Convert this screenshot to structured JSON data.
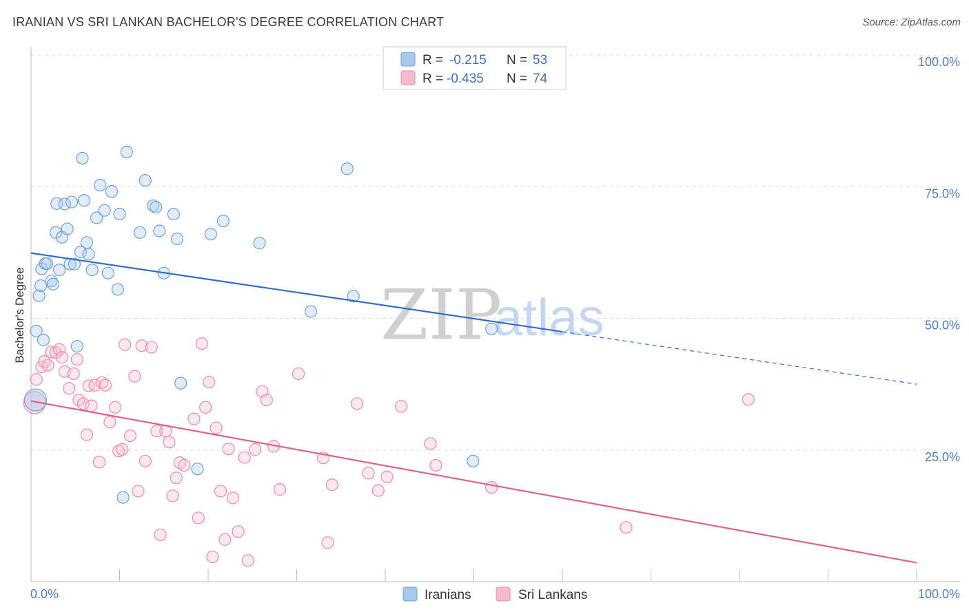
{
  "header": {
    "title": "IRANIAN VS SRI LANKAN BACHELOR'S DEGREE CORRELATION CHART",
    "source": "Source: ZipAtlas.com"
  },
  "watermark": {
    "zip": "ZIP",
    "atlas": "atlas"
  },
  "colors": {
    "blue_fill": "#a9c8ee",
    "blue_stroke": "#6f9fd8",
    "blue_line": "#2f6fcc",
    "pink_fill": "#f6bccd",
    "pink_stroke": "#ec8aa8",
    "pink_line": "#e0608e",
    "grid": "#dddddd",
    "axis_label": "#4a7cc7"
  },
  "legend": {
    "rows": [
      {
        "r_label": "R =",
        "r_value": "-0.215",
        "n_label": "N =",
        "n_value": "53"
      },
      {
        "r_label": "R =",
        "r_value": "-0.435",
        "n_label": "N =",
        "n_value": "74"
      }
    ]
  },
  "chart_data": {
    "type": "scatter",
    "title": "IRANIAN VS SRI LANKAN BACHELOR'S DEGREE CORRELATION CHART",
    "xlabel": "",
    "ylabel": "Bachelor's Degree",
    "xlim": [
      0,
      100
    ],
    "ylim": [
      0,
      100
    ],
    "x_tick_labels": [
      "0.0%",
      "100.0%"
    ],
    "y_ticks": [
      {
        "value": 100,
        "label": "100.0%"
      },
      {
        "value": 75,
        "label": "75.0%"
      },
      {
        "value": 50,
        "label": "50.0%"
      },
      {
        "value": 25,
        "label": "25.0%"
      }
    ],
    "legend_position": "bottom",
    "series": [
      {
        "name": "Iranians",
        "r": -0.215,
        "n": 53,
        "trend": {
          "x_start": 0,
          "y_start": 62.4,
          "x_solid_end": 60,
          "x_end": 100,
          "y_end": 37.5
        },
        "points": [
          [
            0.5,
            34.5
          ],
          [
            0.6,
            47.6
          ],
          [
            0.9,
            54.3
          ],
          [
            1.1,
            56.2
          ],
          [
            1.2,
            59.4
          ],
          [
            1.4,
            45.9
          ],
          [
            1.6,
            60.4
          ],
          [
            1.8,
            60.4
          ],
          [
            2.3,
            57.1
          ],
          [
            2.5,
            56.5
          ],
          [
            2.8,
            66.3
          ],
          [
            2.9,
            71.8
          ],
          [
            3.2,
            59.2
          ],
          [
            3.5,
            65.4
          ],
          [
            3.8,
            71.7
          ],
          [
            4.1,
            67.0
          ],
          [
            4.4,
            60.3
          ],
          [
            4.6,
            72.1
          ],
          [
            4.9,
            60.3
          ],
          [
            5.2,
            44.7
          ],
          [
            5.6,
            62.6
          ],
          [
            5.8,
            80.4
          ],
          [
            6.0,
            72.4
          ],
          [
            6.3,
            64.4
          ],
          [
            6.5,
            62.2
          ],
          [
            6.9,
            59.2
          ],
          [
            7.4,
            69.1
          ],
          [
            7.8,
            75.3
          ],
          [
            8.3,
            70.5
          ],
          [
            8.7,
            58.6
          ],
          [
            9.1,
            74.1
          ],
          [
            9.8,
            55.5
          ],
          [
            10.0,
            69.8
          ],
          [
            10.4,
            16.0
          ],
          [
            10.8,
            81.6
          ],
          [
            12.3,
            66.3
          ],
          [
            12.9,
            76.2
          ],
          [
            13.8,
            71.4
          ],
          [
            14.1,
            71.1
          ],
          [
            14.5,
            66.6
          ],
          [
            15.0,
            58.6
          ],
          [
            16.1,
            69.8
          ],
          [
            16.5,
            65.1
          ],
          [
            16.9,
            37.7
          ],
          [
            18.8,
            21.4
          ],
          [
            20.3,
            66.0
          ],
          [
            21.7,
            68.5
          ],
          [
            25.8,
            64.3
          ],
          [
            31.6,
            51.3
          ],
          [
            35.7,
            78.4
          ],
          [
            36.4,
            54.2
          ],
          [
            49.9,
            22.9
          ],
          [
            52.0,
            48.0
          ]
        ]
      },
      {
        "name": "Sri Lankans",
        "r": -0.435,
        "n": 74,
        "trend": {
          "x_start": 0,
          "y_start": 34.3,
          "x_end": 100,
          "y_end": 3.6
        },
        "points": [
          [
            0.4,
            34.0
          ],
          [
            0.6,
            38.4
          ],
          [
            1.2,
            40.8
          ],
          [
            1.5,
            41.8
          ],
          [
            1.9,
            41.1
          ],
          [
            2.3,
            43.6
          ],
          [
            2.8,
            43.5
          ],
          [
            3.2,
            44.1
          ],
          [
            3.5,
            42.6
          ],
          [
            3.8,
            39.9
          ],
          [
            4.3,
            36.7
          ],
          [
            4.8,
            39.5
          ],
          [
            5.2,
            42.2
          ],
          [
            5.4,
            34.5
          ],
          [
            5.9,
            33.8
          ],
          [
            6.3,
            27.9
          ],
          [
            6.5,
            37.2
          ],
          [
            6.8,
            33.4
          ],
          [
            7.2,
            37.3
          ],
          [
            7.7,
            22.7
          ],
          [
            8.0,
            37.8
          ],
          [
            8.4,
            37.3
          ],
          [
            8.9,
            30.3
          ],
          [
            9.5,
            33.1
          ],
          [
            9.9,
            24.8
          ],
          [
            10.3,
            25.1
          ],
          [
            10.6,
            45.0
          ],
          [
            11.2,
            27.7
          ],
          [
            11.7,
            39.0
          ],
          [
            12.1,
            17.2
          ],
          [
            12.5,
            44.8
          ],
          [
            12.9,
            22.9
          ],
          [
            13.6,
            44.5
          ],
          [
            14.2,
            28.6
          ],
          [
            14.6,
            8.9
          ],
          [
            15.2,
            28.6
          ],
          [
            15.6,
            26.5
          ],
          [
            16.0,
            16.3
          ],
          [
            16.4,
            19.7
          ],
          [
            16.8,
            22.6
          ],
          [
            17.3,
            22.1
          ],
          [
            18.4,
            30.9
          ],
          [
            18.9,
            12.1
          ],
          [
            19.3,
            45.2
          ],
          [
            19.7,
            33.1
          ],
          [
            20.1,
            37.9
          ],
          [
            20.5,
            4.7
          ],
          [
            20.9,
            29.2
          ],
          [
            21.4,
            17.2
          ],
          [
            21.9,
            8.0
          ],
          [
            22.3,
            25.2
          ],
          [
            22.8,
            15.9
          ],
          [
            23.4,
            9.5
          ],
          [
            24.1,
            23.6
          ],
          [
            24.5,
            4.0
          ],
          [
            25.3,
            25.1
          ],
          [
            26.1,
            36.1
          ],
          [
            26.6,
            34.5
          ],
          [
            27.4,
            25.7
          ],
          [
            28.1,
            17.5
          ],
          [
            30.2,
            39.5
          ],
          [
            33.0,
            23.5
          ],
          [
            33.5,
            7.4
          ],
          [
            34.0,
            18.4
          ],
          [
            36.8,
            33.8
          ],
          [
            38.1,
            20.6
          ],
          [
            39.2,
            17.3
          ],
          [
            40.2,
            19.9
          ],
          [
            41.8,
            33.3
          ],
          [
            45.1,
            26.2
          ],
          [
            45.7,
            22.1
          ],
          [
            52.0,
            17.9
          ],
          [
            67.2,
            10.3
          ],
          [
            81.0,
            34.6
          ]
        ]
      }
    ]
  }
}
